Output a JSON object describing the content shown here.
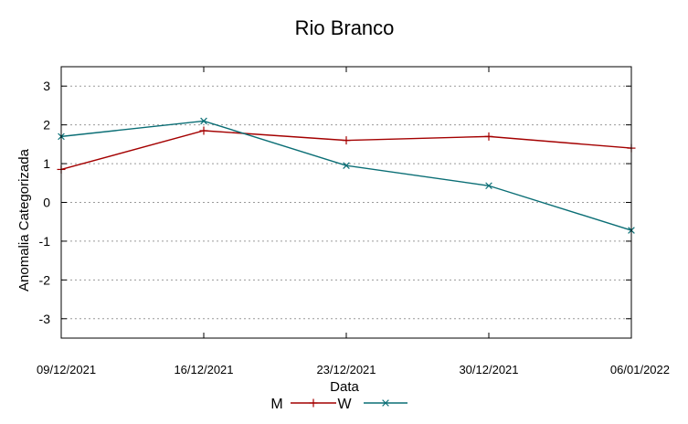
{
  "chart_data": {
    "type": "line",
    "title": "Rio Branco",
    "xlabel": "Data",
    "ylabel": "Anomalia Categorizada",
    "categories": [
      "09/12/2021",
      "16/12/2021",
      "23/12/2021",
      "30/12/2021",
      "06/01/2022"
    ],
    "yticks": [
      "3",
      "2",
      "1",
      "0",
      "-1",
      "-2",
      "-3"
    ],
    "ylim": [
      -3.5,
      3.5
    ],
    "grid": "horizontal-dashed",
    "legend_position": "bottom-center",
    "series": [
      {
        "name": "M",
        "values": [
          0.85,
          1.85,
          1.6,
          1.7,
          1.4
        ],
        "color": "#a40000",
        "marker": "plus"
      },
      {
        "name": "W",
        "values": [
          1.7,
          2.1,
          0.95,
          0.43,
          -0.72
        ],
        "color": "#0a6e75",
        "marker": "cross"
      }
    ]
  }
}
